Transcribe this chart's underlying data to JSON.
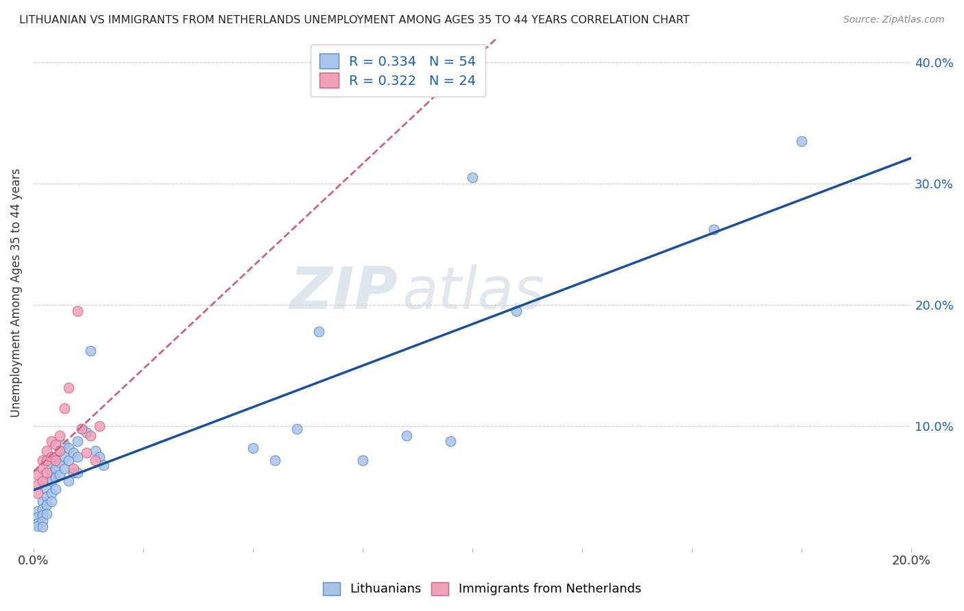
{
  "title": "LITHUANIAN VS IMMIGRANTS FROM NETHERLANDS UNEMPLOYMENT AMONG AGES 35 TO 44 YEARS CORRELATION CHART",
  "source": "Source: ZipAtlas.com",
  "ylabel": "Unemployment Among Ages 35 to 44 years",
  "xlim": [
    0,
    0.2
  ],
  "ylim": [
    0,
    0.42
  ],
  "yticks": [
    0.0,
    0.1,
    0.2,
    0.3,
    0.4
  ],
  "ytick_labels": [
    "",
    "10.0%",
    "20.0%",
    "30.0%",
    "40.0%"
  ],
  "blue_R": 0.334,
  "blue_N": 54,
  "pink_R": 0.322,
  "pink_N": 24,
  "blue_color": "#aac4e8",
  "pink_color": "#f0a0b8",
  "blue_edge_color": "#5588cc",
  "pink_edge_color": "#d06080",
  "blue_line_color": "#1a4fa0",
  "pink_line_color": "#d06080",
  "watermark_zip": "ZIP",
  "watermark_atlas": "atlas",
  "blue_x": [
    0.001,
    0.001,
    0.001,
    0.001,
    0.002,
    0.002,
    0.002,
    0.002,
    0.002,
    0.003,
    0.003,
    0.003,
    0.003,
    0.003,
    0.004,
    0.004,
    0.004,
    0.004,
    0.004,
    0.005,
    0.005,
    0.005,
    0.005,
    0.006,
    0.006,
    0.006,
    0.007,
    0.007,
    0.007,
    0.008,
    0.008,
    0.008,
    0.009,
    0.009,
    0.01,
    0.01,
    0.01,
    0.011,
    0.012,
    0.013,
    0.014,
    0.015,
    0.016,
    0.05,
    0.055,
    0.06,
    0.065,
    0.075,
    0.085,
    0.095,
    0.1,
    0.11,
    0.155,
    0.175
  ],
  "blue_y": [
    0.03,
    0.025,
    0.02,
    0.018,
    0.038,
    0.032,
    0.027,
    0.022,
    0.017,
    0.055,
    0.048,
    0.042,
    0.035,
    0.028,
    0.07,
    0.062,
    0.055,
    0.045,
    0.038,
    0.075,
    0.065,
    0.058,
    0.048,
    0.08,
    0.07,
    0.06,
    0.085,
    0.075,
    0.065,
    0.082,
    0.072,
    0.055,
    0.078,
    0.062,
    0.088,
    0.075,
    0.062,
    0.098,
    0.095,
    0.162,
    0.08,
    0.075,
    0.068,
    0.082,
    0.072,
    0.098,
    0.178,
    0.072,
    0.092,
    0.088,
    0.305,
    0.195,
    0.262,
    0.335
  ],
  "pink_x": [
    0.001,
    0.001,
    0.001,
    0.002,
    0.002,
    0.002,
    0.003,
    0.003,
    0.003,
    0.004,
    0.004,
    0.005,
    0.005,
    0.006,
    0.006,
    0.007,
    0.008,
    0.009,
    0.01,
    0.011,
    0.012,
    0.013,
    0.014,
    0.015
  ],
  "pink_y": [
    0.06,
    0.052,
    0.045,
    0.072,
    0.065,
    0.055,
    0.08,
    0.072,
    0.062,
    0.088,
    0.075,
    0.085,
    0.072,
    0.092,
    0.08,
    0.115,
    0.132,
    0.065,
    0.195,
    0.098,
    0.078,
    0.092,
    0.072,
    0.1
  ]
}
